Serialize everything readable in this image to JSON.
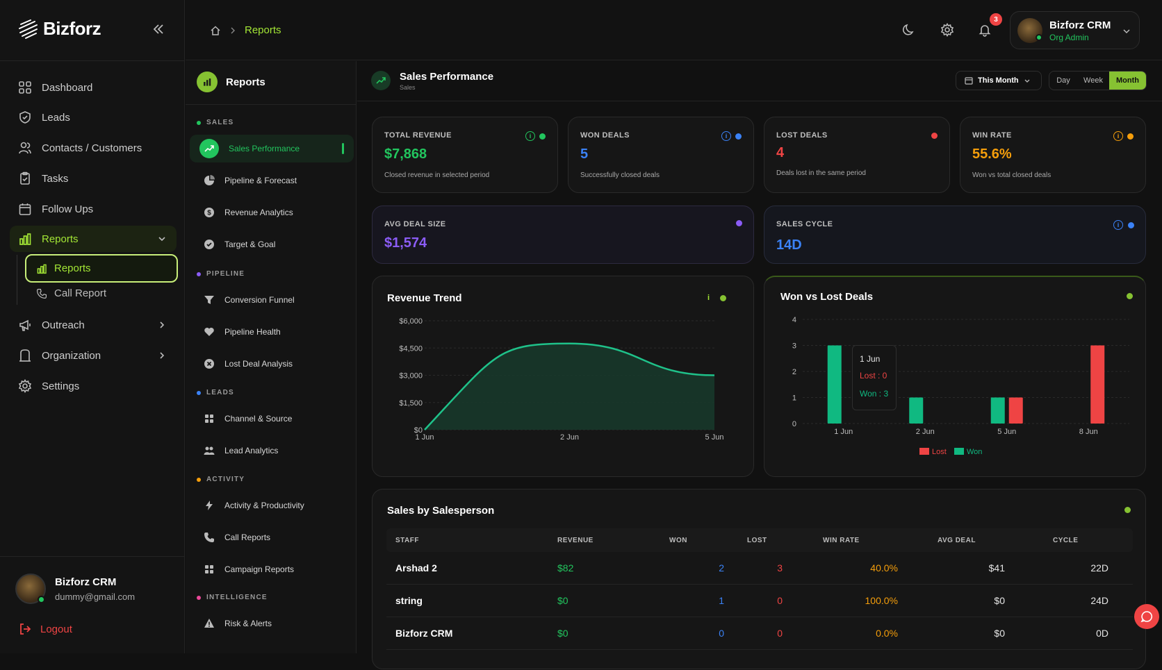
{
  "app": {
    "name": "Bizforz"
  },
  "breadcrumb": {
    "current": "Reports"
  },
  "notifications": {
    "count": "3"
  },
  "user": {
    "name": "Bizforz CRM",
    "role": "Org Admin",
    "email": "dummy@gmail.com"
  },
  "sidebar": {
    "items": [
      {
        "label": "Dashboard",
        "icon": "dashboard-icon"
      },
      {
        "label": "Leads",
        "icon": "shield-check-icon"
      },
      {
        "label": "Contacts / Customers",
        "icon": "users-icon"
      },
      {
        "label": "Tasks",
        "icon": "clipboard-icon"
      },
      {
        "label": "Follow Ups",
        "icon": "calendar-icon"
      },
      {
        "label": "Reports",
        "icon": "bar-chart-icon"
      },
      {
        "label": "Outreach",
        "icon": "megaphone-icon"
      },
      {
        "label": "Organization",
        "icon": "building-icon"
      },
      {
        "label": "Settings",
        "icon": "gear-icon"
      }
    ],
    "reports_children": [
      {
        "label": "Reports",
        "icon": "bar-chart-icon"
      },
      {
        "label": "Call Report",
        "icon": "phone-icon"
      }
    ],
    "logout": "Logout"
  },
  "subnav": {
    "title": "Reports",
    "sections": [
      {
        "title": "SALES",
        "color": "#22c55e",
        "items": [
          "Sales Performance",
          "Pipeline & Forecast",
          "Revenue Analytics",
          "Target & Goal"
        ]
      },
      {
        "title": "PIPELINE",
        "color": "#8b5cf6",
        "items": [
          "Conversion Funnel",
          "Pipeline Health",
          "Lost Deal Analysis"
        ]
      },
      {
        "title": "LEADS",
        "color": "#3b82f6",
        "items": [
          "Channel & Source",
          "Lead Analytics"
        ]
      },
      {
        "title": "ACTIVITY",
        "color": "#f59e0b",
        "items": [
          "Activity & Productivity",
          "Call Reports",
          "Campaign Reports"
        ]
      },
      {
        "title": "INTELLIGENCE",
        "color": "#ec4899",
        "items": [
          "Risk & Alerts"
        ]
      }
    ]
  },
  "header": {
    "title": "Sales Performance",
    "subtitle": "Sales",
    "period": "This Month",
    "ranges": [
      "Day",
      "Week",
      "Month"
    ],
    "active_range": "Month"
  },
  "kpis": [
    {
      "label": "TOTAL REVENUE",
      "value": "$7,868",
      "desc": "Closed revenue in selected period",
      "color": "#22c55e"
    },
    {
      "label": "WON DEALS",
      "value": "5",
      "desc": "Successfully closed deals",
      "color": "#3b82f6"
    },
    {
      "label": "LOST DEALS",
      "value": "4",
      "desc": "Deals lost in the same period",
      "color": "#ef4444"
    },
    {
      "label": "WIN RATE",
      "value": "55.6%",
      "desc": "Won vs total closed deals",
      "color": "#f59e0b"
    },
    {
      "label": "AVG DEAL SIZE",
      "value": "$1,574",
      "desc": "",
      "color": "#8b5cf6"
    },
    {
      "label": "SALES CYCLE",
      "value": "14D",
      "desc": "",
      "color": "#3b82f6"
    }
  ],
  "chart_data": [
    {
      "type": "area",
      "title": "Revenue Trend",
      "x": [
        "1 Jun",
        "2 Jun",
        "5 Jun"
      ],
      "y_ticks": [
        "$0",
        "$1,500",
        "$3,000",
        "$4,500",
        "$6,000"
      ],
      "ylim": [
        0,
        6000
      ],
      "series": [
        {
          "values": [
            0,
            4750,
            3000
          ]
        }
      ],
      "grid": true
    },
    {
      "type": "bar",
      "title": "Won vs Lost Deals",
      "categories": [
        "1 Jun",
        "2 Jun",
        "5 Jun",
        "8 Jun"
      ],
      "y_ticks": [
        "0",
        "1",
        "2",
        "3",
        "4"
      ],
      "ylim": [
        0,
        4
      ],
      "series": [
        {
          "name": "Lost",
          "color": "#ef4444",
          "values": [
            0,
            0,
            1,
            3
          ]
        },
        {
          "name": "Won",
          "color": "#10b981",
          "values": [
            3,
            1,
            1,
            0
          ]
        }
      ],
      "tooltip": {
        "title": "1 Jun",
        "lost": "Lost : 0",
        "won": "Won : 3"
      },
      "legend": "bottom"
    }
  ],
  "table": {
    "title": "Sales by Salesperson",
    "columns": [
      "STAFF",
      "REVENUE",
      "WON",
      "LOST",
      "WIN RATE",
      "AVG DEAL",
      "CYCLE"
    ],
    "rows": [
      [
        "Arshad 2",
        "$82",
        "2",
        "3",
        "40.0%",
        "$41",
        "22D"
      ],
      [
        "string",
        "$0",
        "1",
        "0",
        "100.0%",
        "$0",
        "24D"
      ],
      [
        "Bizforz CRM",
        "$0",
        "0",
        "0",
        "0.0%",
        "$0",
        "0D"
      ]
    ]
  }
}
